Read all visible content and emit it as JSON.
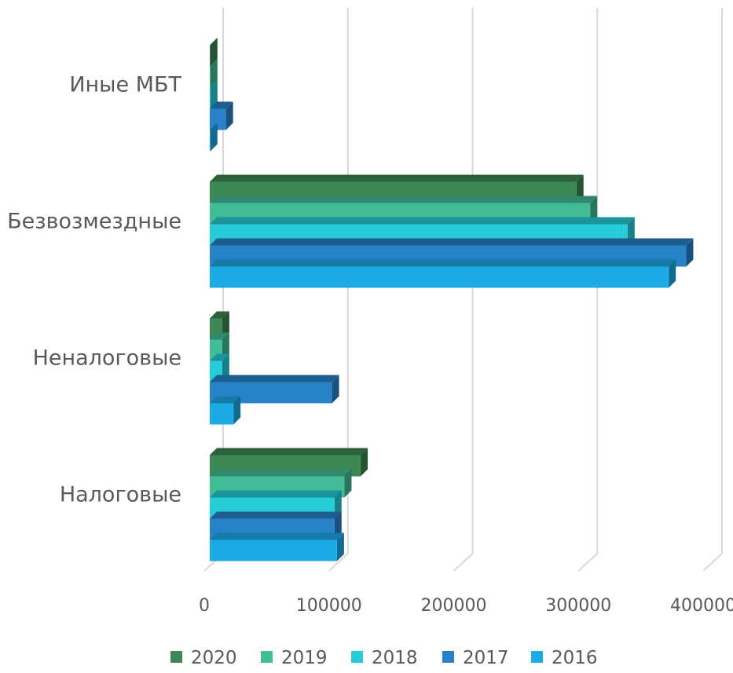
{
  "chart_data": {
    "type": "bar",
    "orientation": "horizontal",
    "style": "3d-clustered",
    "categories": [
      "Налоговые",
      "Неналоговые",
      "Безвозмездные",
      "Иные МБТ"
    ],
    "series": [
      {
        "name": "2016",
        "color": "#1DABE6",
        "values": [
          102000,
          19000,
          368000,
          500
        ]
      },
      {
        "name": "2017",
        "color": "#2882C8",
        "values": [
          100000,
          98000,
          382000,
          13000
        ]
      },
      {
        "name": "2018",
        "color": "#26CDD9",
        "values": [
          100000,
          10000,
          335000,
          500
        ]
      },
      {
        "name": "2019",
        "color": "#43BD97",
        "values": [
          108000,
          10000,
          305000,
          500
        ]
      },
      {
        "name": "2020",
        "color": "#3D8753",
        "values": [
          121000,
          10000,
          294000,
          500
        ]
      }
    ],
    "legend_order": [
      "2020",
      "2019",
      "2018",
      "2017",
      "2016"
    ],
    "xlim": [
      0,
      400000
    ],
    "x_ticks": [
      "0",
      "100000",
      "200000",
      "300000",
      "400000"
    ],
    "grid": true,
    "legend_position": "bottom",
    "title": "",
    "xlabel": "",
    "ylabel": ""
  }
}
